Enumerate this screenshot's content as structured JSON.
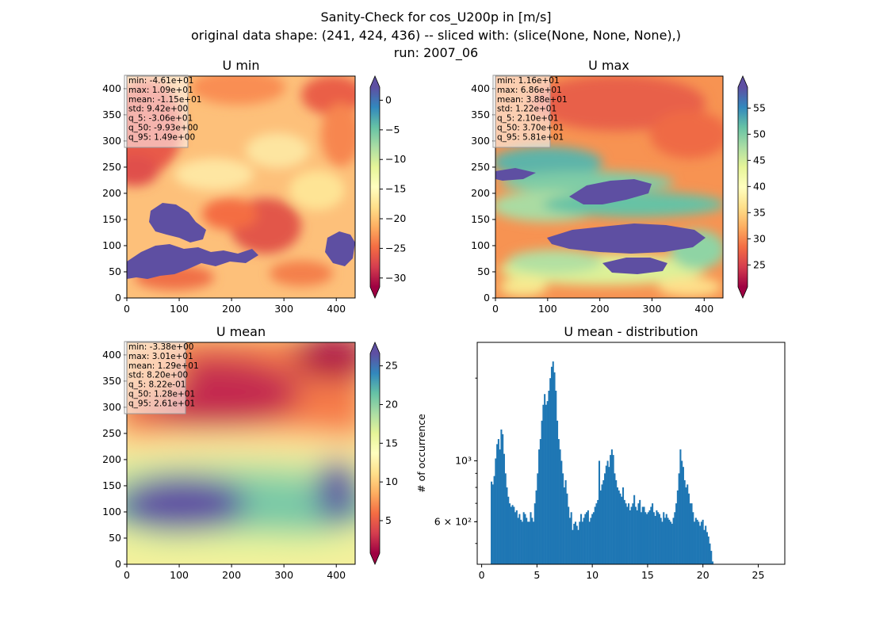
{
  "figure": {
    "title_line1": "Sanity-Check for cos_U200p in [m/s]",
    "title_line2": "original data shape: (241, 424, 436) -- sliced with: (slice(None, None, None),)",
    "title_line3": "run: 2007_06"
  },
  "chart_data": [
    {
      "type": "heatmap",
      "title": "U min",
      "colormap": "Spectral",
      "xlim": [
        0,
        436
      ],
      "ylim": [
        0,
        424
      ],
      "xticks": [
        "0",
        "100",
        "200",
        "300",
        "400"
      ],
      "yticks": [
        "0",
        "50",
        "100",
        "150",
        "200",
        "250",
        "300",
        "350",
        "400"
      ],
      "colorbar": {
        "ticks": [
          "0",
          "−5",
          "−10",
          "−15",
          "−20",
          "−25",
          "−30"
        ],
        "range": [
          -31.5,
          2.2
        ]
      },
      "stats": [
        "min: -4.61e+01",
        "max: 1.09e+01",
        "mean: -1.15e+01",
        "std: 9.42e+00",
        "q_5: -3.06e+01",
        "q_50: -9.93e+00",
        "q_95: 1.49e+00"
      ]
    },
    {
      "type": "heatmap",
      "title": "U max",
      "colormap": "Spectral",
      "xlim": [
        0,
        436
      ],
      "ylim": [
        0,
        424
      ],
      "xticks": [
        "0",
        "100",
        "200",
        "300",
        "400"
      ],
      "yticks": [
        "0",
        "50",
        "100",
        "150",
        "200",
        "250",
        "300",
        "350",
        "400"
      ],
      "colorbar": {
        "ticks": [
          "25",
          "30",
          "35",
          "40",
          "45",
          "50",
          "55"
        ],
        "range": [
          20.8,
          59.0
        ]
      },
      "stats": [
        "min: 1.16e+01",
        "max: 6.86e+01",
        "mean: 3.88e+01",
        "std: 1.22e+01",
        "q_5: 2.10e+01",
        "q_50: 3.70e+01",
        "q_95: 5.81e+01"
      ]
    },
    {
      "type": "heatmap",
      "title": "U mean",
      "colormap": "Spectral",
      "xlim": [
        0,
        436
      ],
      "ylim": [
        0,
        424
      ],
      "xticks": [
        "0",
        "100",
        "200",
        "300",
        "400"
      ],
      "yticks": [
        "0",
        "50",
        "100",
        "150",
        "200",
        "250",
        "300",
        "350",
        "400"
      ],
      "colorbar": {
        "ticks": [
          "5",
          "10",
          "15",
          "20",
          "25"
        ],
        "range": [
          0.8,
          26.6
        ]
      },
      "stats": [
        "min: -3.38e+00",
        "max: 3.01e+01",
        "mean: 1.29e+01",
        "std: 8.20e+00",
        "q_5: 8.22e-01",
        "q_50: 1.28e+01",
        "q_95: 2.61e+01"
      ]
    },
    {
      "type": "bar",
      "title": "U mean - distribution",
      "ylabel": "# of occurrence",
      "yscale": "log",
      "xlim": [
        -0.4,
        27.4
      ],
      "ylim": [
        420,
        2700
      ],
      "xticks": [
        "0",
        "5",
        "10",
        "15",
        "20",
        "25"
      ],
      "ytick_labels": [
        "6 × 10²",
        "10³"
      ],
      "bar_color": "#1f77b4",
      "x_start": 0.82,
      "bin_width": 0.1265,
      "values": [
        840,
        820,
        880,
        1020,
        1150,
        1200,
        1100,
        1300,
        1250,
        1060,
        900,
        800,
        740,
        700,
        680,
        690,
        680,
        650,
        660,
        620,
        640,
        610,
        600,
        650,
        640,
        620,
        600,
        600,
        650,
        620,
        600,
        700,
        780,
        900,
        1100,
        1200,
        1400,
        1600,
        1750,
        1600,
        1650,
        1800,
        2000,
        2200,
        2300,
        2100,
        1800,
        1400,
        1200,
        1100,
        1000,
        900,
        800,
        850,
        760,
        680,
        620,
        650,
        560,
        590,
        600,
        580,
        560,
        600,
        640,
        600,
        620,
        640,
        650,
        660,
        600,
        620,
        640,
        650,
        680,
        700,
        720,
        1000,
        780,
        820,
        850,
        900,
        960,
        1000,
        950,
        1050,
        1100,
        1050,
        900,
        850,
        800,
        780,
        760,
        740,
        800,
        720,
        700,
        680,
        700,
        660,
        680,
        700,
        750,
        680,
        660,
        700,
        720,
        650,
        680,
        680,
        650,
        640,
        650,
        660,
        680,
        700,
        650,
        630,
        660,
        650,
        640,
        620,
        600,
        650,
        620,
        640,
        620,
        610,
        600,
        590,
        620,
        650,
        700,
        780,
        900,
        1100,
        1000,
        950,
        850,
        800,
        820,
        760,
        700,
        700,
        650,
        600,
        620,
        610,
        600,
        580,
        600,
        610,
        560,
        580,
        550,
        530,
        500,
        470,
        430
      ]
    }
  ]
}
